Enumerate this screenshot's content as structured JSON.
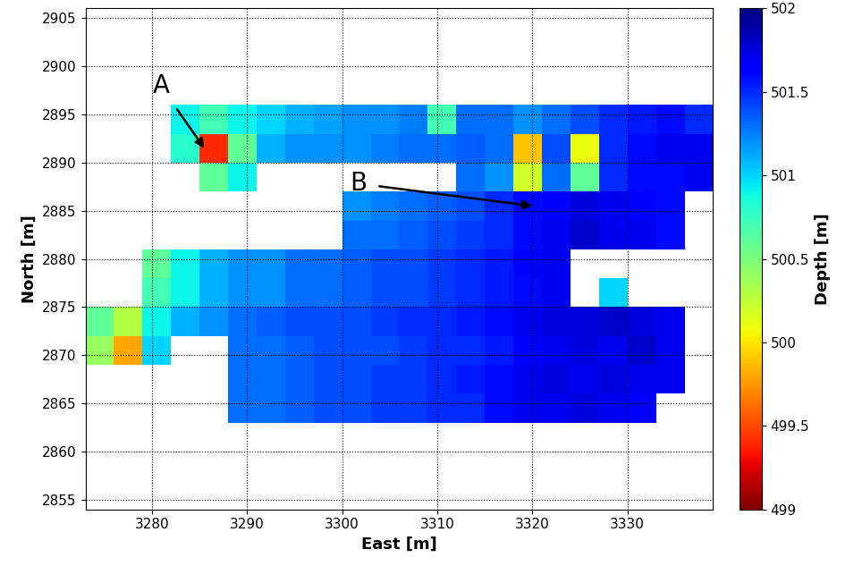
{
  "chart_data": {
    "type": "heatmap",
    "xlabel": "East [m]",
    "ylabel": "North [m]",
    "xlim": [
      3273,
      3339
    ],
    "ylim": [
      2854,
      2906
    ],
    "xticks": [
      3280,
      3290,
      3300,
      3310,
      3320,
      3330
    ],
    "yticks": [
      2855,
      2860,
      2865,
      2870,
      2875,
      2880,
      2885,
      2890,
      2895,
      2900,
      2905
    ],
    "grid": true,
    "x_edges": [
      3273,
      3276,
      3279,
      3282,
      3285,
      3288,
      3291,
      3294,
      3297,
      3300,
      3303,
      3306,
      3309,
      3312,
      3315,
      3318,
      3321,
      3324,
      3327,
      3330,
      3333,
      3336,
      3339
    ],
    "y_edges": [
      2863,
      2866,
      2869,
      2872,
      2875,
      2878,
      2881,
      2884,
      2887,
      2890,
      2893,
      2896
    ],
    "cells": [
      [
        null,
        null,
        null,
        null,
        null,
        501.3,
        501.3,
        501.35,
        501.4,
        501.4,
        501.45,
        501.45,
        501.5,
        501.5,
        501.6,
        501.7,
        501.7,
        501.75,
        501.7,
        501.65,
        null,
        null
      ],
      [
        null,
        null,
        null,
        null,
        null,
        501.3,
        501.3,
        501.35,
        501.4,
        501.4,
        501.45,
        501.45,
        501.5,
        501.55,
        501.6,
        501.7,
        501.75,
        501.7,
        501.75,
        501.7,
        501.7,
        null
      ],
      [
        500.4,
        499.8,
        501.0,
        null,
        null,
        501.3,
        501.3,
        501.35,
        501.4,
        501.4,
        501.4,
        501.45,
        501.5,
        501.5,
        501.55,
        501.65,
        501.7,
        501.75,
        501.7,
        501.8,
        501.7,
        null
      ],
      [
        500.6,
        500.3,
        500.9,
        501.1,
        501.2,
        501.3,
        501.35,
        501.4,
        501.4,
        501.4,
        501.45,
        501.5,
        501.5,
        501.55,
        501.6,
        501.7,
        501.75,
        501.75,
        501.8,
        501.75,
        501.7,
        null
      ],
      [
        null,
        null,
        500.7,
        500.9,
        501.1,
        501.2,
        501.2,
        501.3,
        501.3,
        501.35,
        501.4,
        501.4,
        501.45,
        501.5,
        501.55,
        501.6,
        501.7,
        null,
        501.0,
        null,
        null,
        null
      ],
      [
        null,
        null,
        500.6,
        500.9,
        501.1,
        501.2,
        501.2,
        501.3,
        501.3,
        501.35,
        501.4,
        501.4,
        501.45,
        501.5,
        501.55,
        501.65,
        501.7,
        null,
        null,
        null,
        null,
        null
      ],
      [
        null,
        null,
        null,
        null,
        null,
        null,
        null,
        null,
        null,
        501.3,
        501.3,
        501.35,
        501.4,
        501.45,
        501.5,
        501.6,
        501.7,
        501.8,
        501.7,
        501.7,
        501.6,
        null
      ],
      [
        null,
        null,
        null,
        null,
        null,
        null,
        null,
        null,
        null,
        501.2,
        501.25,
        501.3,
        501.35,
        501.4,
        501.5,
        501.6,
        501.65,
        501.75,
        501.7,
        501.65,
        501.6,
        null
      ],
      [
        null,
        null,
        null,
        null,
        500.6,
        500.9,
        null,
        null,
        null,
        null,
        null,
        null,
        null,
        501.3,
        501.2,
        500.2,
        501.3,
        500.6,
        501.5,
        501.6,
        501.6,
        501.7
      ],
      [
        null,
        null,
        null,
        500.8,
        499.4,
        500.6,
        501.1,
        501.2,
        501.2,
        501.2,
        501.25,
        501.3,
        501.3,
        501.35,
        501.3,
        499.9,
        501.4,
        500.1,
        501.5,
        501.6,
        501.7,
        501.7
      ],
      [
        null,
        null,
        null,
        500.9,
        500.7,
        500.9,
        501.0,
        501.1,
        501.15,
        501.2,
        501.2,
        501.25,
        500.7,
        501.3,
        501.3,
        501.2,
        501.3,
        501.4,
        501.5,
        501.55,
        501.6,
        501.5
      ]
    ],
    "colorbar": {
      "label": "Depth [m]",
      "range": [
        499,
        502
      ],
      "ticks": [
        499,
        499.5,
        500,
        500.5,
        501,
        501.5,
        502
      ]
    },
    "annotations": [
      {
        "text": "A",
        "x": 3285.5,
        "y": 2891.5
      },
      {
        "text": "B",
        "x": 3320,
        "y": 2885.5
      }
    ]
  }
}
